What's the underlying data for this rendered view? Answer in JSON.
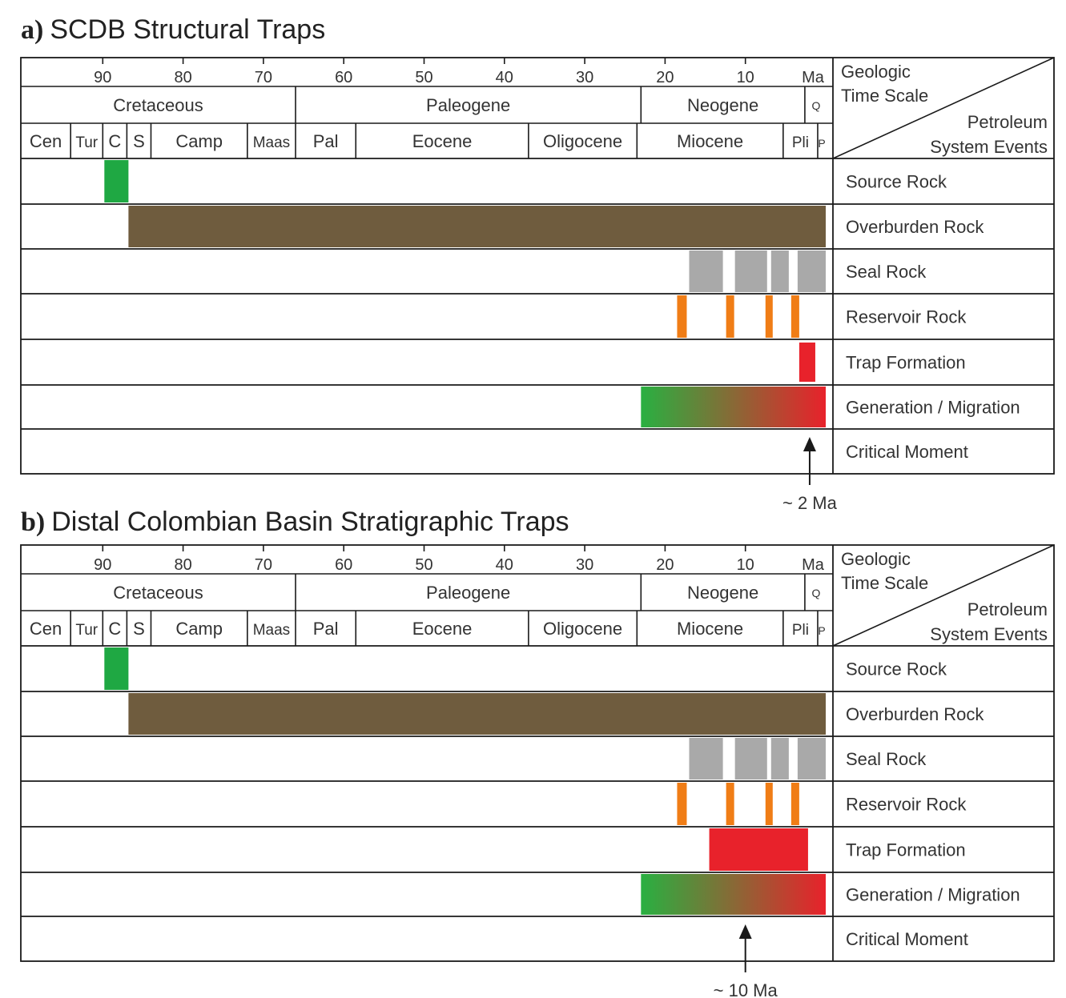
{
  "figure": {
    "common": {
      "tick_values": [
        90,
        80,
        70,
        60,
        50,
        40,
        30,
        20,
        10
      ],
      "tick_labels": [
        "90",
        "80",
        "70",
        "60",
        "50",
        "40",
        "30",
        "20",
        "10"
      ],
      "unit_label": "Ma",
      "periods": [
        {
          "label": "Cretaceous",
          "start": 100.5,
          "end": 66
        },
        {
          "label": "Paleogene",
          "start": 66,
          "end": 23
        },
        {
          "label": "Neogene",
          "start": 23,
          "end": 2.6
        },
        {
          "label": "Q",
          "start": 2.6,
          "end": 0
        }
      ],
      "epochs": [
        {
          "label": "Cen",
          "start": 100.5,
          "end": 94
        },
        {
          "label": "Tur",
          "start": 94,
          "end": 90
        },
        {
          "label": "C",
          "start": 90,
          "end": 87
        },
        {
          "label": "S",
          "start": 87,
          "end": 84
        },
        {
          "label": "Camp",
          "start": 84,
          "end": 72
        },
        {
          "label": "Maas",
          "start": 72,
          "end": 66
        },
        {
          "label": "Pal",
          "start": 66,
          "end": 58.5
        },
        {
          "label": "Eocene",
          "start": 58.5,
          "end": 37
        },
        {
          "label": "Oligocene",
          "start": 37,
          "end": 23.5
        },
        {
          "label": "Miocene",
          "start": 23.5,
          "end": 5.3
        },
        {
          "label": "Pli",
          "start": 5.3,
          "end": 1
        },
        {
          "label": "P",
          "start": 1,
          "end": 0
        }
      ],
      "header_labels": {
        "time_scale_line1": "Geologic",
        "time_scale_line2": "Time Scale",
        "events_line1": "Petroleum",
        "events_line2": "System Events"
      },
      "rows": [
        "Source Rock",
        "Overburden Rock",
        "Seal Rock",
        "Reservoir Rock",
        "Trap Formation",
        "Generation / Migration",
        "Critical Moment"
      ],
      "colors": {
        "source": "#1fa843",
        "overburden": "#6f5c3e",
        "seal": "#a9a9a9",
        "reservoir": "#f07d16",
        "trap": "#e8222b",
        "gen_start": "#29b041",
        "gen_end": "#e8222b",
        "line": "#1a1a1a"
      }
    }
  },
  "chart_data": [
    {
      "type": "timeline",
      "panel_letter": "a)",
      "title": "SCDB Structural Traps",
      "x_unit": "Ma",
      "xlim": [
        100.5,
        0
      ],
      "events": {
        "Source Rock": [
          [
            89.8,
            86.8
          ]
        ],
        "Overburden Rock": [
          [
            86.8,
            0
          ]
        ],
        "Seal Rock": [
          [
            17,
            12.8
          ],
          [
            11.3,
            7.3
          ],
          [
            6.8,
            4.6
          ],
          [
            3.5,
            0
          ]
        ],
        "Reservoir Rock": [
          [
            18.5,
            17.3
          ],
          [
            12.4,
            11.4
          ],
          [
            7.5,
            6.6
          ],
          [
            4.3,
            3.3
          ]
        ],
        "Trap Formation": [
          [
            3.3,
            1.3
          ]
        ],
        "Generation / Migration": [
          [
            23,
            0
          ]
        ]
      },
      "critical_moment": {
        "value": 2,
        "label": "~ 2 Ma"
      }
    },
    {
      "type": "timeline",
      "panel_letter": "b)",
      "title": "Distal Colombian Basin Stratigraphic Traps",
      "x_unit": "Ma",
      "xlim": [
        100.5,
        0
      ],
      "events": {
        "Source Rock": [
          [
            89.8,
            86.8
          ]
        ],
        "Overburden Rock": [
          [
            86.8,
            0
          ]
        ],
        "Seal Rock": [
          [
            17,
            12.8
          ],
          [
            11.3,
            7.3
          ],
          [
            6.8,
            4.6
          ],
          [
            3.5,
            0
          ]
        ],
        "Reservoir Rock": [
          [
            18.5,
            17.3
          ],
          [
            12.4,
            11.4
          ],
          [
            7.5,
            6.6
          ],
          [
            4.3,
            3.3
          ]
        ],
        "Trap Formation": [
          [
            14.5,
            2.2
          ]
        ],
        "Generation / Migration": [
          [
            23,
            0
          ]
        ]
      },
      "critical_moment": {
        "value": 10,
        "label": "~ 10 Ma"
      }
    }
  ]
}
